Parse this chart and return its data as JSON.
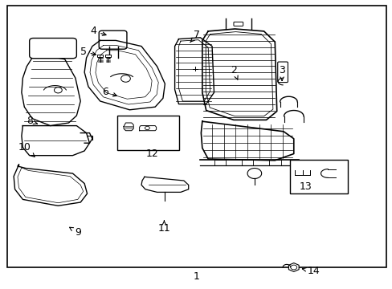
{
  "bg_color": "#ffffff",
  "border_color": "#000000",
  "line_color": "#000000",
  "fig_width": 4.89,
  "fig_height": 3.6,
  "dpi": 100,
  "font_size_num": 9,
  "label_positions": {
    "1": [
      0.5,
      0.033,
      0.5,
      0.033
    ],
    "2": [
      0.595,
      0.76,
      0.6,
      0.715
    ],
    "3": [
      0.72,
      0.76,
      0.718,
      0.715
    ],
    "4": [
      0.24,
      0.89,
      0.275,
      0.875
    ],
    "5": [
      0.215,
      0.82,
      0.245,
      0.81
    ],
    "6": [
      0.27,
      0.68,
      0.3,
      0.668
    ],
    "7": [
      0.5,
      0.875,
      0.475,
      0.848
    ],
    "8": [
      0.08,
      0.58,
      0.1,
      0.568
    ],
    "9": [
      0.195,
      0.195,
      0.18,
      0.215
    ],
    "10": [
      0.068,
      0.49,
      0.09,
      0.458
    ],
    "11": [
      0.418,
      0.208,
      0.418,
      0.24
    ],
    "12": [
      0.388,
      0.468,
      0.388,
      0.48
    ],
    "13": [
      0.78,
      0.355,
      0.78,
      0.368
    ],
    "14": [
      0.795,
      0.062,
      0.762,
      0.072
    ]
  }
}
